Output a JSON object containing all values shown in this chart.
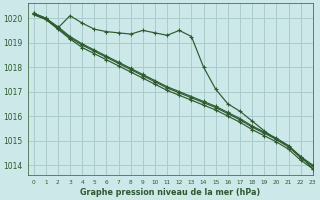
{
  "background_color": "#cce8e8",
  "grid_color": "#aacccc",
  "line_color": "#2d5a2d",
  "title": "Graphe pression niveau de la mer (hPa)",
  "xlim": [
    -0.5,
    23
  ],
  "ylim": [
    1013.6,
    1020.6
  ],
  "yticks": [
    1014,
    1015,
    1016,
    1017,
    1018,
    1019,
    1020
  ],
  "xticks": [
    0,
    1,
    2,
    3,
    4,
    5,
    6,
    7,
    8,
    9,
    10,
    11,
    12,
    13,
    14,
    15,
    16,
    17,
    18,
    19,
    20,
    21,
    22,
    23
  ],
  "series": [
    [
      1020.2,
      1020.0,
      1019.6,
      1020.1,
      1019.8,
      1019.55,
      1019.45,
      1019.4,
      1019.35,
      1019.5,
      1019.4,
      1019.3,
      1019.5,
      1019.25,
      1018.0,
      1017.1,
      1016.5,
      1016.2,
      1015.8,
      1015.4,
      1015.05,
      1014.75,
      1014.35,
      1013.85
    ],
    [
      1020.15,
      1019.95,
      1019.55,
      1019.15,
      1018.8,
      1018.55,
      1018.3,
      1018.05,
      1017.8,
      1017.55,
      1017.3,
      1017.05,
      1016.85,
      1016.65,
      1016.45,
      1016.25,
      1016.0,
      1015.75,
      1015.45,
      1015.2,
      1014.95,
      1014.65,
      1014.2,
      1013.85
    ],
    [
      1020.15,
      1019.95,
      1019.6,
      1019.2,
      1018.9,
      1018.65,
      1018.4,
      1018.15,
      1017.9,
      1017.65,
      1017.4,
      1017.15,
      1016.95,
      1016.75,
      1016.55,
      1016.35,
      1016.1,
      1015.85,
      1015.55,
      1015.3,
      1015.05,
      1014.75,
      1014.3,
      1013.95
    ],
    [
      1020.2,
      1020.0,
      1019.65,
      1019.25,
      1018.95,
      1018.7,
      1018.45,
      1018.2,
      1017.95,
      1017.7,
      1017.45,
      1017.2,
      1017.0,
      1016.8,
      1016.6,
      1016.4,
      1016.15,
      1015.9,
      1015.6,
      1015.35,
      1015.1,
      1014.8,
      1014.35,
      1014.0
    ]
  ]
}
